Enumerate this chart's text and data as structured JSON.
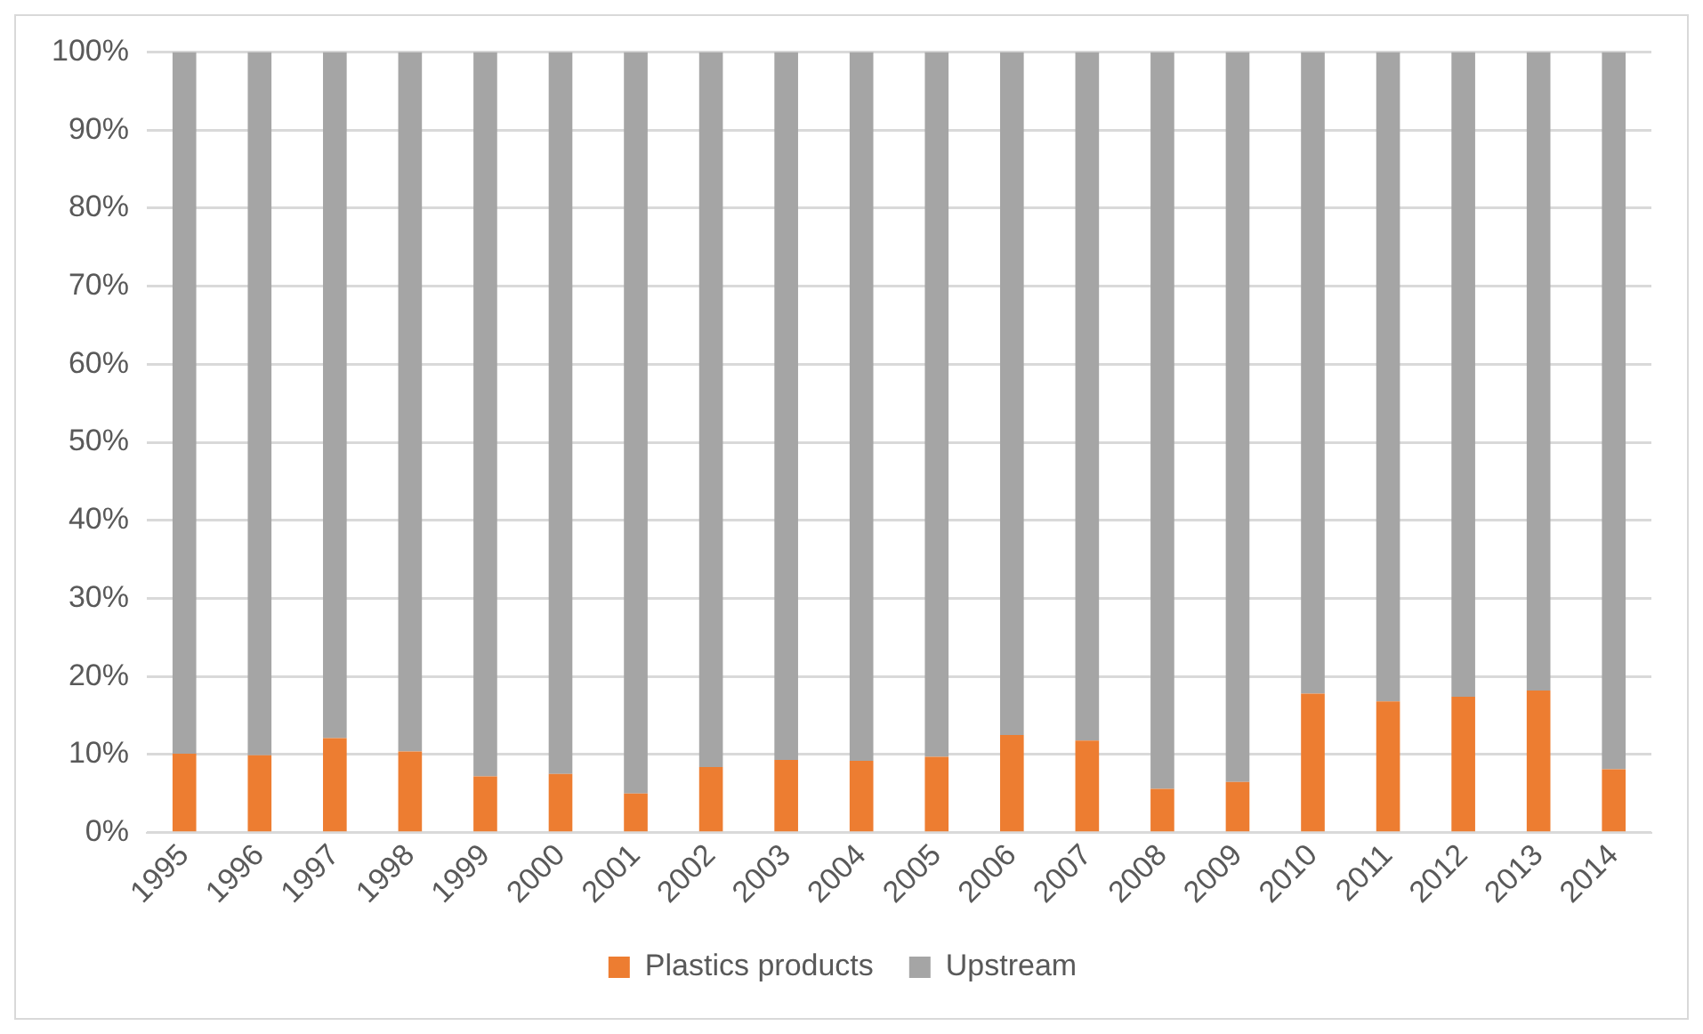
{
  "chart_data": {
    "type": "bar",
    "stacked": true,
    "categories": [
      "1995",
      "1996",
      "1997",
      "1998",
      "1999",
      "2000",
      "2001",
      "2002",
      "2003",
      "2004",
      "2005",
      "2006",
      "2007",
      "2008",
      "2009",
      "2010",
      "2011",
      "2012",
      "2013",
      "2014"
    ],
    "series": [
      {
        "name": "Plastics products",
        "color": "#ed7d31",
        "values": [
          10.1,
          9.9,
          12.1,
          10.4,
          7.2,
          7.5,
          5.0,
          8.4,
          9.3,
          9.2,
          9.7,
          12.5,
          11.8,
          5.6,
          6.5,
          17.8,
          16.8,
          17.4,
          18.2,
          8.1
        ]
      },
      {
        "name": "Upstream",
        "color": "#a5a5a5",
        "values": [
          89.9,
          90.1,
          87.9,
          89.6,
          92.8,
          92.5,
          95.0,
          91.6,
          90.7,
          90.8,
          90.3,
          87.5,
          88.2,
          94.4,
          93.5,
          82.2,
          83.2,
          82.6,
          81.8,
          91.9
        ]
      }
    ],
    "ylim": [
      0,
      100
    ],
    "yticks": [
      {
        "value": 0,
        "label": "0%"
      },
      {
        "value": 10,
        "label": "10%"
      },
      {
        "value": 20,
        "label": "20%"
      },
      {
        "value": 30,
        "label": "30%"
      },
      {
        "value": 40,
        "label": "40%"
      },
      {
        "value": 50,
        "label": "50%"
      },
      {
        "value": 60,
        "label": "60%"
      },
      {
        "value": 70,
        "label": "70%"
      },
      {
        "value": 80,
        "label": "80%"
      },
      {
        "value": 90,
        "label": "90%"
      },
      {
        "value": 100,
        "label": "100%"
      }
    ],
    "grid": "y",
    "legend": "bottom"
  }
}
